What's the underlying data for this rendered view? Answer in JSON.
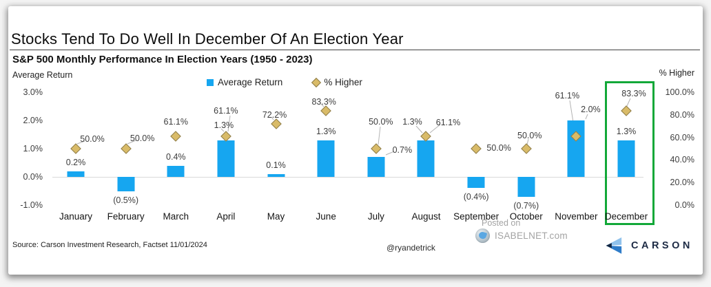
{
  "title": "Stocks Tend To Do Well In December Of An Election Year",
  "subtitle": "S&P 500 Monthly Performance In Election Years (1950 - 2023)",
  "left_axis": {
    "label": "Average Return",
    "ticks": [
      "3.0%",
      "2.0%",
      "1.0%",
      "0.0%",
      "-1.0%"
    ]
  },
  "right_axis": {
    "label": "% Higher",
    "ticks": [
      "100.0%",
      "80.0%",
      "60.0%",
      "40.0%",
      "20.0%",
      "0.0%"
    ]
  },
  "legend": [
    {
      "label": "Average Return",
      "marker": "square",
      "color": "#16a6f0"
    },
    {
      "label": "% Higher",
      "marker": "diamond",
      "color": "#d9bb68"
    }
  ],
  "chart_data": {
    "type": "bar",
    "categories": [
      "January",
      "February",
      "March",
      "April",
      "May",
      "June",
      "July",
      "August",
      "September",
      "October",
      "November",
      "December"
    ],
    "series": [
      {
        "name": "Average Return",
        "type": "bar",
        "axis": "left",
        "unit": "%",
        "color": "#16a6f0",
        "values": [
          0.2,
          -0.5,
          0.4,
          1.3,
          0.1,
          1.3,
          0.7,
          1.3,
          -0.4,
          -0.7,
          2.0,
          1.3
        ],
        "labels": [
          "0.2%",
          "(0.5%)",
          "0.4%",
          "1.3%",
          "0.1%",
          "1.3%",
          "0.7%",
          "1.3%",
          "(0.4%)",
          "(0.7%)",
          "2.0%",
          "1.3%"
        ]
      },
      {
        "name": "% Higher",
        "type": "scatter",
        "marker": "diamond",
        "axis": "right",
        "unit": "%",
        "color": "#d9bb68",
        "values": [
          50.0,
          50.0,
          61.1,
          61.1,
          72.2,
          83.3,
          50.0,
          61.1,
          50.0,
          50.0,
          61.1,
          83.3
        ],
        "labels": [
          "50.0%",
          "50.0%",
          "61.1%",
          "61.1%",
          "72.2%",
          "83.3%",
          "50.0%",
          "61.1%",
          "50.0%",
          "50.0%",
          "61.1%",
          "83.3%"
        ]
      }
    ],
    "left_ylim": [
      -1.0,
      3.0
    ],
    "right_ylim": [
      0,
      100
    ],
    "grid": "zero-line-only",
    "legend_position": "top-center",
    "highlight": {
      "category": "December",
      "box_color": "#12a838"
    }
  },
  "footer": {
    "source": "Source: Carson Investment Research, Factset 11/01/2024",
    "handle": "@ryandetrick",
    "watermark_line1": "Posted on",
    "watermark_line2": "ISABELNET.com",
    "brand": "CARSON"
  }
}
